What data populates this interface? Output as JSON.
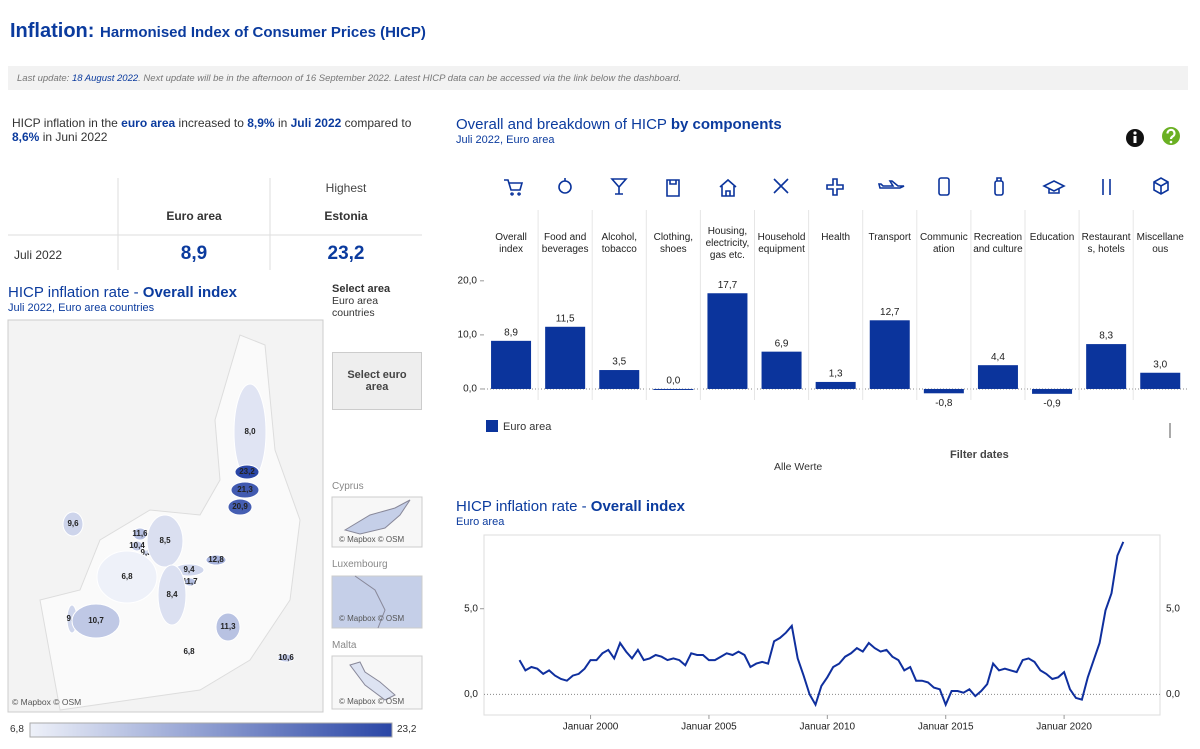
{
  "header": {
    "title": "Inflation:",
    "subtitle": "Harmonised Index of Consumer Prices (HICP)"
  },
  "info": {
    "prefix": "Last update: ",
    "date": "18 August 2022",
    "text": ". Next update will be in the afternoon of 16 September 2022. Latest HICP data can be accessed via the link below the dashboard."
  },
  "summary": [
    "HICP inflation in the ",
    "euro area",
    "  increased to ",
    "8,9%",
    " in ",
    "Juli 2022",
    " compared to ",
    "8,6%",
    " in Juni 2022"
  ],
  "table": {
    "header": [
      "",
      "Euro area",
      "Estonia"
    ],
    "super_header": "Highest",
    "rows": [
      [
        "Juli 2022",
        "8,9",
        "23,2"
      ]
    ]
  },
  "map": {
    "title": "HICP inflation rate - ",
    "title_bold": "Overall index",
    "subtitle": "Juli 2022, Euro area countries",
    "values": [
      8.0,
      23.2,
      21.3,
      20.9,
      9.6,
      11.6,
      10.4,
      9.3,
      8.5,
      6.8,
      9.4,
      12.8,
      11.7,
      8.4,
      9.4,
      10.7,
      11.3,
      6.8,
      10.6
    ],
    "value_labels": [
      "8,0",
      "23,2",
      "21,3",
      "20,9",
      "9,6",
      "11,6",
      "10,4",
      "9,3",
      "8,5",
      "6,8",
      "9,4",
      "12,8",
      "11,7",
      "8,4",
      "9,4",
      "10,7",
      "11,3",
      "6,8",
      "10,6"
    ],
    "scale": {
      "range": [
        6.8,
        23.2
      ],
      "range_labels": [
        "6,8",
        "23,2"
      ]
    },
    "credit": "© Mapbox © OSM",
    "insets": [
      {
        "name": "Cyprus",
        "credit": "© Mapbox © OSM"
      },
      {
        "name": "Luxembourg",
        "credit": "© Mapbox © OSM"
      },
      {
        "name": "Malta",
        "credit": "© Mapbox © OSM"
      }
    ]
  },
  "select": {
    "label": "Select area",
    "value": "Euro area countries",
    "button": "Select euro area"
  },
  "filter": {
    "label": "Filter dates",
    "value": "Alle Werte"
  },
  "chart_data": [
    {
      "type": "bar",
      "title": "Overall and breakdown of HICP ",
      "title_bold": "by components",
      "subtitle": "Juli 2022, Euro area",
      "categories": [
        "Overall index",
        "Food and beverages",
        "Alcohol, tobacco",
        "Clothing, shoes",
        "Housing, electricity, gas etc.",
        "Household equipment",
        "Health",
        "Transport",
        "Communication",
        "Recreation and culture",
        "Education",
        "Restaurants, hotels",
        "Miscellaneous"
      ],
      "series": [
        {
          "name": "Euro area",
          "color": "#0b349c",
          "values": [
            8.9,
            11.5,
            3.5,
            0.0,
            17.7,
            6.9,
            1.3,
            12.7,
            -0.8,
            4.4,
            -0.9,
            8.3,
            3.0
          ],
          "value_labels": [
            "8,9",
            "11,5",
            "3,5",
            "0,0",
            "17,7",
            "6,9",
            "1,3",
            "12,7",
            "-0,8",
            "4,4",
            "-0,9",
            "8,3",
            "3,0"
          ]
        }
      ],
      "ylim": [
        -4,
        22
      ],
      "yticks": [
        {
          "value": 0,
          "label": "0,0"
        },
        {
          "value": 10,
          "label": "10,0"
        },
        {
          "value": 20,
          "label": "20,0"
        }
      ]
    },
    {
      "type": "line",
      "title": "HICP inflation rate - ",
      "title_bold": "Overall index",
      "subtitle": "Euro area",
      "color": "#0f2f9e",
      "x": [
        1997,
        1997.25,
        1997.5,
        1997.75,
        1998,
        1998.25,
        1998.5,
        1998.75,
        1999,
        1999.25,
        1999.5,
        1999.75,
        2000,
        2000.25,
        2000.5,
        2000.75,
        2001,
        2001.25,
        2001.5,
        2001.75,
        2002,
        2002.25,
        2002.5,
        2002.75,
        2003,
        2003.25,
        2003.5,
        2003.75,
        2004,
        2004.25,
        2004.5,
        2004.75,
        2005,
        2005.25,
        2005.5,
        2005.75,
        2006,
        2006.25,
        2006.5,
        2006.75,
        2007,
        2007.25,
        2007.5,
        2007.75,
        2008,
        2008.25,
        2008.5,
        2008.75,
        2009,
        2009.25,
        2009.5,
        2009.75,
        2010,
        2010.25,
        2010.5,
        2010.75,
        2011,
        2011.25,
        2011.5,
        2011.75,
        2012,
        2012.25,
        2012.5,
        2012.75,
        2013,
        2013.25,
        2013.5,
        2013.75,
        2014,
        2014.25,
        2014.5,
        2014.75,
        2015,
        2015.25,
        2015.5,
        2015.75,
        2016,
        2016.25,
        2016.5,
        2016.75,
        2017,
        2017.25,
        2017.5,
        2017.75,
        2018,
        2018.25,
        2018.5,
        2018.75,
        2019,
        2019.25,
        2019.5,
        2019.75,
        2020,
        2020.25,
        2020.5,
        2020.75,
        2021,
        2021.25,
        2021.5,
        2021.75,
        2022,
        2022.25,
        2022.5
      ],
      "values": [
        2.0,
        1.4,
        1.6,
        1.5,
        1.2,
        1.4,
        1.1,
        0.9,
        0.8,
        1.1,
        1.2,
        1.5,
        2.0,
        2.0,
        2.4,
        2.6,
        2.1,
        3.0,
        2.5,
        2.1,
        2.6,
        2.0,
        2.1,
        2.3,
        2.2,
        2.0,
        2.1,
        2.0,
        1.7,
        2.4,
        2.3,
        2.3,
        2.0,
        2.0,
        2.2,
        2.4,
        2.3,
        2.5,
        2.3,
        1.6,
        1.8,
        1.9,
        1.8,
        3.1,
        3.3,
        3.6,
        4.0,
        2.1,
        1.1,
        0.0,
        -0.6,
        0.5,
        1.0,
        1.6,
        1.8,
        2.2,
        2.4,
        2.7,
        2.5,
        3.0,
        2.7,
        2.5,
        2.6,
        2.2,
        2.0,
        1.4,
        1.6,
        0.8,
        0.8,
        0.7,
        0.4,
        0.3,
        -0.6,
        0.2,
        0.2,
        0.1,
        0.3,
        -0.1,
        0.2,
        0.6,
        1.8,
        1.4,
        1.5,
        1.4,
        1.3,
        2.0,
        2.1,
        1.9,
        1.4,
        1.2,
        0.9,
        1.0,
        1.3,
        0.3,
        -0.2,
        -0.3,
        1.0,
        2.0,
        3.0,
        4.9,
        5.9,
        8.1,
        8.9
      ],
      "xlim": [
        1995.5,
        2024.05
      ],
      "xticks": [
        {
          "value": 2000,
          "label": "Januar 2000"
        },
        {
          "value": 2005,
          "label": "Januar 2005"
        },
        {
          "value": 2010,
          "label": "Januar 2010"
        },
        {
          "value": 2015,
          "label": "Januar 2015"
        },
        {
          "value": 2020,
          "label": "Januar 2020"
        }
      ],
      "ylim": [
        -1.2,
        9.3
      ],
      "yticks": [
        {
          "value": 0,
          "label": "0,0"
        },
        {
          "value": 5,
          "label": "5,0"
        }
      ]
    }
  ]
}
